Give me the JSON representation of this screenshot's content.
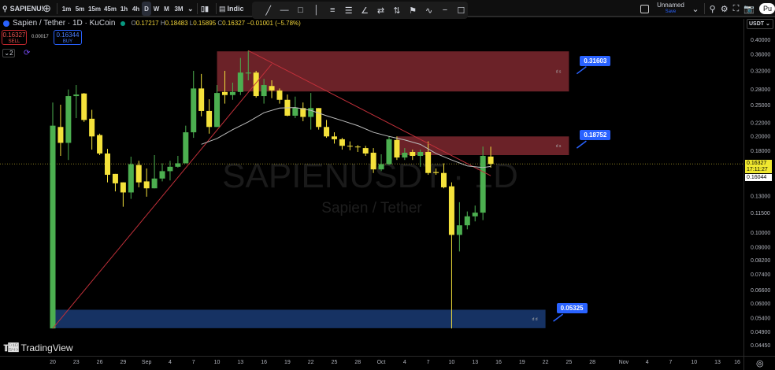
{
  "topbar": {
    "symbol": "SAPIENU!",
    "timeframes": [
      "1m",
      "5m",
      "15m",
      "45m",
      "1h",
      "4h",
      "D",
      "W",
      "M",
      "3M"
    ],
    "active_timeframe": "D",
    "indicators_label": "Indic",
    "layout_name": "Unnamed",
    "save_label": "Save",
    "publish_label": "Pu"
  },
  "drawing_tools": [
    "trend-line",
    "horizontal-ray",
    "rectangle",
    "vertical-line",
    "fib-channel",
    "parallel-lines",
    "angle",
    "date-range",
    "price-range",
    "flag",
    "path",
    "cross-line",
    "callout"
  ],
  "legend": {
    "title": "Sapien / Tether · 1D · KuCoin",
    "o_label": "O",
    "o": "0.17217",
    "h_label": "H",
    "h": "0.18483",
    "l_label": "L",
    "l": "0.15895",
    "c_label": "C",
    "c": "0.16327",
    "change": "−0.01001 (−5.78%)"
  },
  "trade": {
    "sell_price": "0.16327",
    "sell_label": "SELL",
    "spread": "0.00017",
    "buy_price": "0.16344",
    "buy_label": "BUY"
  },
  "indicator_count": "2",
  "watermark": {
    "symbol": "SAPIENUSDT · 1D",
    "name": "Sapien / Tether"
  },
  "brand": "TradingView",
  "currency": "USDT",
  "last_price": "0.16327",
  "countdown": "17:11:27",
  "ma_value": "0.16044",
  "colors": {
    "up": "#4caf50",
    "down": "#f5e23b",
    "supply_zone": "#6b2228",
    "demand_zone": "#163263",
    "trend_line": "#c2303a",
    "ma": "#bdbdbd",
    "callout": "#2962ff"
  },
  "chart_data": {
    "type": "candlestick",
    "scale": "log",
    "ylim": [
      0.042,
      0.448
    ],
    "y_ticks": [
      "0.40000",
      "0.36000",
      "0.32000",
      "0.28000",
      "0.25000",
      "0.22000",
      "0.20000",
      "0.18000",
      "0.13000",
      "0.11500",
      "0.10000",
      "0.09000",
      "0.08200",
      "0.07400",
      "0.06600",
      "0.06000",
      "0.05400",
      "0.04900",
      "0.04450"
    ],
    "x_ticks": [
      {
        "label": "20",
        "date": "Aug 20"
      },
      {
        "label": "23",
        "date": "Aug 23"
      },
      {
        "label": "26",
        "date": "Aug 26"
      },
      {
        "label": "29",
        "date": "Aug 29"
      },
      {
        "label": "Sep",
        "date": "Sep 1"
      },
      {
        "label": "4",
        "date": "Sep 4"
      },
      {
        "label": "7",
        "date": "Sep 7"
      },
      {
        "label": "10",
        "date": "Sep 10"
      },
      {
        "label": "13",
        "date": "Sep 13"
      },
      {
        "label": "16",
        "date": "Sep 16"
      },
      {
        "label": "19",
        "date": "Sep 19"
      },
      {
        "label": "22",
        "date": "Sep 22"
      },
      {
        "label": "25",
        "date": "Sep 25"
      },
      {
        "label": "28",
        "date": "Sep 28"
      },
      {
        "label": "Oct",
        "date": "Oct 1"
      },
      {
        "label": "4",
        "date": "Oct 4"
      },
      {
        "label": "7",
        "date": "Oct 7"
      },
      {
        "label": "10",
        "date": "Oct 10"
      },
      {
        "label": "13",
        "date": "Oct 13"
      },
      {
        "label": "16",
        "date": "Oct 16"
      },
      {
        "label": "19",
        "date": "Oct 19"
      },
      {
        "label": "22",
        "date": "Oct 22"
      },
      {
        "label": "25",
        "date": "Oct 25"
      },
      {
        "label": "28",
        "date": "Oct 28"
      },
      {
        "label": "Nov",
        "date": "Nov 1"
      },
      {
        "label": "4",
        "date": "Nov 4"
      },
      {
        "label": "7",
        "date": "Nov 7"
      },
      {
        "label": "10",
        "date": "Nov 10"
      },
      {
        "label": "13",
        "date": "Nov 13"
      },
      {
        "label": "16",
        "date": "Nov 16"
      }
    ],
    "first_date": "Aug 20",
    "ohlc": [
      [
        0.05,
        0.254,
        0.05,
        0.215
      ],
      [
        0.213,
        0.25,
        0.173,
        0.19
      ],
      [
        0.19,
        0.279,
        0.168,
        0.266
      ],
      [
        0.266,
        0.288,
        0.227,
        0.269
      ],
      [
        0.271,
        0.272,
        0.221,
        0.224
      ],
      [
        0.226,
        0.241,
        0.181,
        0.199
      ],
      [
        0.201,
        0.203,
        0.174,
        0.176
      ],
      [
        0.176,
        0.182,
        0.143,
        0.151
      ],
      [
        0.152,
        0.152,
        0.134,
        0.142
      ],
      [
        0.143,
        0.143,
        0.12,
        0.133
      ],
      [
        0.133,
        0.172,
        0.127,
        0.163
      ],
      [
        0.162,
        0.167,
        0.138,
        0.143
      ],
      [
        0.144,
        0.158,
        0.129,
        0.137
      ],
      [
        0.137,
        0.174,
        0.137,
        0.147
      ],
      [
        0.147,
        0.164,
        0.144,
        0.155
      ],
      [
        0.155,
        0.167,
        0.145,
        0.16
      ],
      [
        0.16,
        0.173,
        0.159,
        0.164
      ],
      [
        0.164,
        0.215,
        0.164,
        0.205
      ],
      [
        0.205,
        0.319,
        0.197,
        0.281
      ],
      [
        0.281,
        0.312,
        0.23,
        0.239
      ],
      [
        0.239,
        0.26,
        0.203,
        0.213
      ],
      [
        0.213,
        0.288,
        0.213,
        0.272
      ],
      [
        0.274,
        0.319,
        0.252,
        0.268
      ],
      [
        0.268,
        0.293,
        0.259,
        0.274
      ],
      [
        0.274,
        0.35,
        0.268,
        0.315
      ],
      [
        0.313,
        0.369,
        0.298,
        0.315
      ],
      [
        0.315,
        0.319,
        0.263,
        0.266
      ],
      [
        0.266,
        0.301,
        0.252,
        0.288
      ],
      [
        0.286,
        0.298,
        0.262,
        0.277
      ],
      [
        0.277,
        0.281,
        0.252,
        0.259
      ],
      [
        0.259,
        0.269,
        0.23,
        0.231
      ],
      [
        0.231,
        0.265,
        0.227,
        0.245
      ],
      [
        0.244,
        0.254,
        0.222,
        0.229
      ],
      [
        0.229,
        0.272,
        0.209,
        0.244
      ],
      [
        0.244,
        0.244,
        0.209,
        0.213
      ],
      [
        0.213,
        0.224,
        0.197,
        0.199
      ],
      [
        0.199,
        0.205,
        0.189,
        0.195
      ],
      [
        0.195,
        0.197,
        0.181,
        0.186
      ],
      [
        0.186,
        0.192,
        0.18,
        0.185
      ],
      [
        0.185,
        0.187,
        0.178,
        0.184
      ],
      [
        0.183,
        0.186,
        0.173,
        0.176
      ],
      [
        0.177,
        0.183,
        0.153,
        0.157
      ],
      [
        0.157,
        0.175,
        0.155,
        0.163
      ],
      [
        0.163,
        0.199,
        0.162,
        0.195
      ],
      [
        0.194,
        0.199,
        0.168,
        0.171
      ],
      [
        0.171,
        0.183,
        0.168,
        0.177
      ],
      [
        0.178,
        0.181,
        0.168,
        0.173
      ],
      [
        0.173,
        0.181,
        0.16,
        0.178
      ],
      [
        0.178,
        0.192,
        0.151,
        0.153
      ],
      [
        0.154,
        0.158,
        0.151,
        0.153
      ],
      [
        0.153,
        0.164,
        0.137,
        0.138
      ],
      [
        0.139,
        0.143,
        0.05,
        0.098
      ],
      [
        0.098,
        0.124,
        0.087,
        0.105
      ],
      [
        0.105,
        0.116,
        0.102,
        0.112
      ],
      [
        0.112,
        0.121,
        0.108,
        0.115
      ],
      [
        0.115,
        0.185,
        0.109,
        0.173
      ],
      [
        0.17217,
        0.18483,
        0.15895,
        0.16327
      ]
    ],
    "moving_average": [
      [
        "Sep 8",
        0.188
      ],
      [
        "Sep 10",
        0.196
      ],
      [
        "Sep 12",
        0.209
      ],
      [
        "Sep 14",
        0.221
      ],
      [
        "Sep 16",
        0.236
      ],
      [
        "Sep 18",
        0.244
      ],
      [
        "Sep 20",
        0.245
      ],
      [
        "Sep 22",
        0.24
      ],
      [
        "Sep 24",
        0.231
      ],
      [
        "Sep 26",
        0.223
      ],
      [
        "Sep 28",
        0.215
      ],
      [
        "Sep 30",
        0.205
      ],
      [
        "Oct 2",
        0.199
      ],
      [
        "Oct 4",
        0.194
      ],
      [
        "Oct 6",
        0.188
      ],
      [
        "Oct 8",
        0.176
      ],
      [
        "Oct 10",
        0.168
      ],
      [
        "Oct 12",
        0.161
      ],
      [
        "Oct 14",
        0.159
      ],
      [
        "Oct 15",
        0.16044
      ]
    ],
    "zones": [
      {
        "type": "supply",
        "from": "Sep 10",
        "to": "Oct 25",
        "top": 0.367,
        "bottom": 0.275,
        "tag": "d s",
        "label": "0.31603"
      },
      {
        "type": "supply",
        "from": "Oct 3",
        "to": "Oct 25",
        "top": 0.199,
        "bottom": 0.174,
        "tag": "d s",
        "label": "0.18752"
      },
      {
        "type": "demand",
        "from": "Aug 20",
        "to": "Oct 22",
        "top": 0.0572,
        "bottom": 0.0501,
        "tag": "d d",
        "label": "0.05325"
      }
    ],
    "trend_lines": [
      [
        [
          "Aug 20",
          0.05
        ],
        [
          "Sep 17",
          0.335
        ]
      ],
      [
        [
          "Sep 14",
          0.369
        ],
        [
          "Oct 15",
          0.15
        ]
      ]
    ]
  }
}
